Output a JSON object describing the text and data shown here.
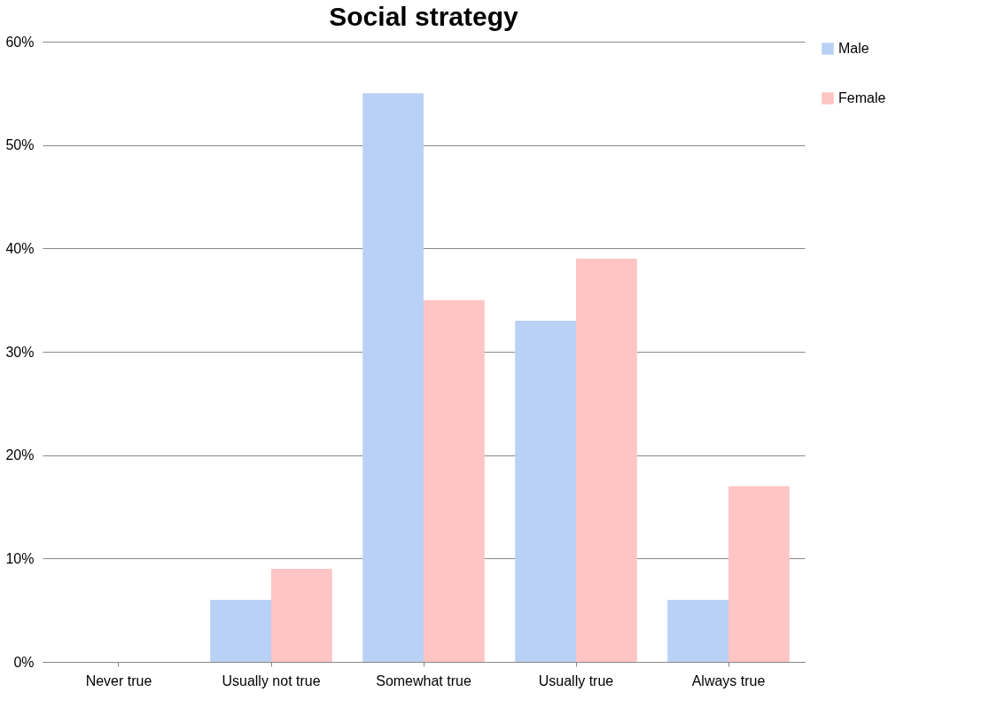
{
  "chart_data": {
    "type": "bar",
    "title": "Social strategy",
    "categories": [
      "Never true",
      "Usually not true",
      "Somewhat true",
      "Usually true",
      "Always true"
    ],
    "series": [
      {
        "name": "Male",
        "color": "#b9d1f5",
        "values": [
          0,
          6,
          55,
          33,
          6
        ]
      },
      {
        "name": "Female",
        "color": "#ffc4c4",
        "values": [
          0,
          9,
          35,
          39,
          17
        ]
      }
    ],
    "ylim": [
      0,
      60
    ],
    "yticks": [
      {
        "value": 0,
        "label": "0%"
      },
      {
        "value": 10,
        "label": "10%"
      },
      {
        "value": 20,
        "label": "20%"
      },
      {
        "value": 30,
        "label": "30%"
      },
      {
        "value": 40,
        "label": "40%"
      },
      {
        "value": 50,
        "label": "50%"
      },
      {
        "value": 60,
        "label": "60%"
      }
    ],
    "grid": "y",
    "legend": "right"
  }
}
